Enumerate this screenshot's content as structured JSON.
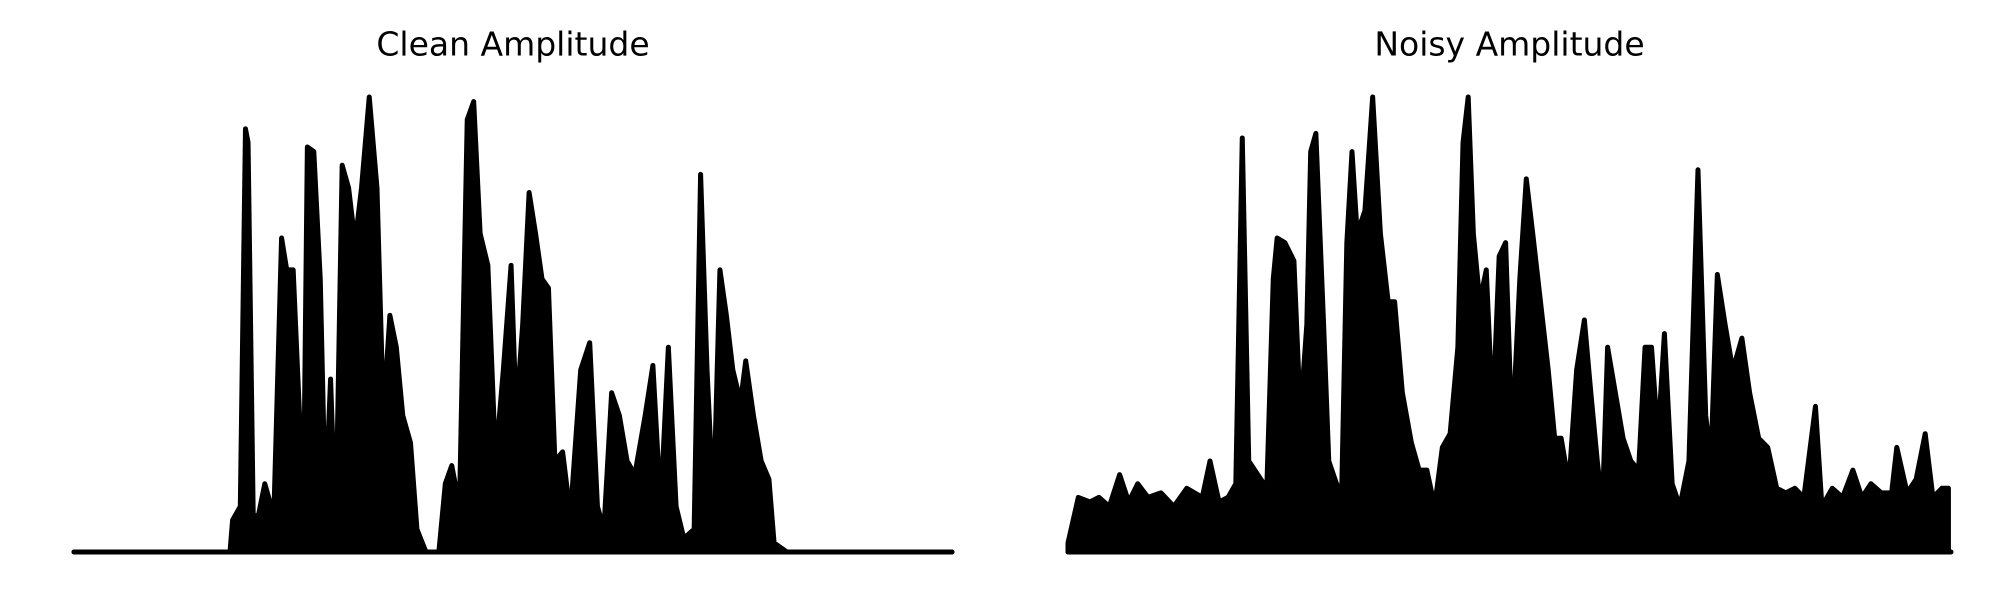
{
  "chart_data": [
    {
      "type": "area",
      "title": "Clean Amplitude",
      "color": "#000000",
      "xlim": [
        0,
        681
      ],
      "ylim": [
        0,
        1
      ],
      "x": [
        0,
        121,
        123,
        129,
        133,
        135,
        139,
        143,
        148,
        155,
        161,
        165,
        170,
        178,
        181,
        186,
        191,
        195,
        199,
        203,
        208,
        213,
        218,
        223,
        229,
        235,
        240,
        245,
        250,
        255,
        261,
        266,
        273,
        283,
        288,
        293,
        299,
        305,
        310,
        315,
        321,
        327,
        333,
        339,
        343,
        348,
        353,
        358,
        363,
        368,
        373,
        379,
        385,
        393,
        400,
        406,
        411,
        417,
        423,
        429,
        435,
        443,
        449,
        455,
        461,
        467,
        473,
        481,
        486,
        491,
        496,
        501,
        506,
        511,
        517,
        521,
        527,
        533,
        539,
        543,
        553,
        681
      ],
      "values": [
        0,
        0,
        0.07,
        0.1,
        0.93,
        0.9,
        0.08,
        0.08,
        0.15,
        0.08,
        0.69,
        0.62,
        0.62,
        0.1,
        0.89,
        0.88,
        0.6,
        0.1,
        0.38,
        0.05,
        0.85,
        0.8,
        0.68,
        0.8,
        1.0,
        0.8,
        0.3,
        0.52,
        0.45,
        0.3,
        0.24,
        0.05,
        0,
        0,
        0.15,
        0.19,
        0.1,
        0.95,
        0.99,
        0.7,
        0.63,
        0.2,
        0.4,
        0.63,
        0.3,
        0.5,
        0.79,
        0.7,
        0.6,
        0.58,
        0.2,
        0.22,
        0.08,
        0.4,
        0.46,
        0.1,
        0.05,
        0.35,
        0.3,
        0.2,
        0.17,
        0.3,
        0.41,
        0.1,
        0.45,
        0.1,
        0.03,
        0.05,
        0.83,
        0.4,
        0.1,
        0.62,
        0.52,
        0.4,
        0.33,
        0.42,
        0.3,
        0.2,
        0.16,
        0.02,
        0,
        0
      ]
    },
    {
      "type": "area",
      "title": "Noisy Amplitude",
      "color": "#000000",
      "xlim": [
        0,
        684
      ],
      "ylim": [
        0,
        1
      ],
      "x": [
        0,
        8,
        17,
        24,
        32,
        40,
        47,
        54,
        62,
        72,
        82,
        92,
        104,
        110,
        117,
        124,
        130,
        135,
        140,
        147,
        154,
        159,
        162,
        168,
        175,
        180,
        185,
        188,
        192,
        198,
        202,
        208,
        212,
        216,
        220,
        224,
        230,
        236,
        242,
        248,
        253,
        259,
        266,
        272,
        278,
        284,
        290,
        296,
        302,
        306,
        310,
        314,
        319,
        324,
        329,
        334,
        339,
        344,
        350,
        355,
        360,
        366,
        372,
        377,
        382,
        388,
        394,
        400,
        405,
        410,
        414,
        418,
        424,
        430,
        436,
        442,
        447,
        452,
        457,
        462,
        468,
        474,
        481,
        488,
        494,
        498,
        503,
        509,
        515,
        522,
        528,
        535,
        542,
        549,
        556,
        563,
        570,
        579,
        584,
        592,
        600,
        608,
        615,
        622,
        630,
        638,
        642,
        650,
        657,
        664,
        670,
        677,
        682
      ],
      "values": [
        0.02,
        0.12,
        0.11,
        0.12,
        0.1,
        0.17,
        0.11,
        0.15,
        0.12,
        0.13,
        0.1,
        0.14,
        0.12,
        0.2,
        0.11,
        0.12,
        0.15,
        0.91,
        0.2,
        0.17,
        0.14,
        0.6,
        0.69,
        0.68,
        0.64,
        0.3,
        0.5,
        0.88,
        0.92,
        0.5,
        0.2,
        0.15,
        0.13,
        0.68,
        0.88,
        0.7,
        0.75,
        1.0,
        0.7,
        0.55,
        0.55,
        0.35,
        0.24,
        0.18,
        0.18,
        0.1,
        0.23,
        0.26,
        0.45,
        0.9,
        1.0,
        0.7,
        0.55,
        0.62,
        0.3,
        0.65,
        0.68,
        0.25,
        0.6,
        0.82,
        0.7,
        0.55,
        0.4,
        0.25,
        0.25,
        0.15,
        0.4,
        0.51,
        0.35,
        0.2,
        0.1,
        0.45,
        0.35,
        0.25,
        0.2,
        0.18,
        0.45,
        0.45,
        0.25,
        0.48,
        0.15,
        0.1,
        0.2,
        0.84,
        0.3,
        0.2,
        0.61,
        0.5,
        0.4,
        0.47,
        0.35,
        0.25,
        0.23,
        0.14,
        0.13,
        0.14,
        0.12,
        0.32,
        0.1,
        0.14,
        0.12,
        0.18,
        0.12,
        0.15,
        0.13,
        0.13,
        0.23,
        0.13,
        0.16,
        0.26,
        0.12,
        0.14,
        0.14
      ]
    }
  ]
}
